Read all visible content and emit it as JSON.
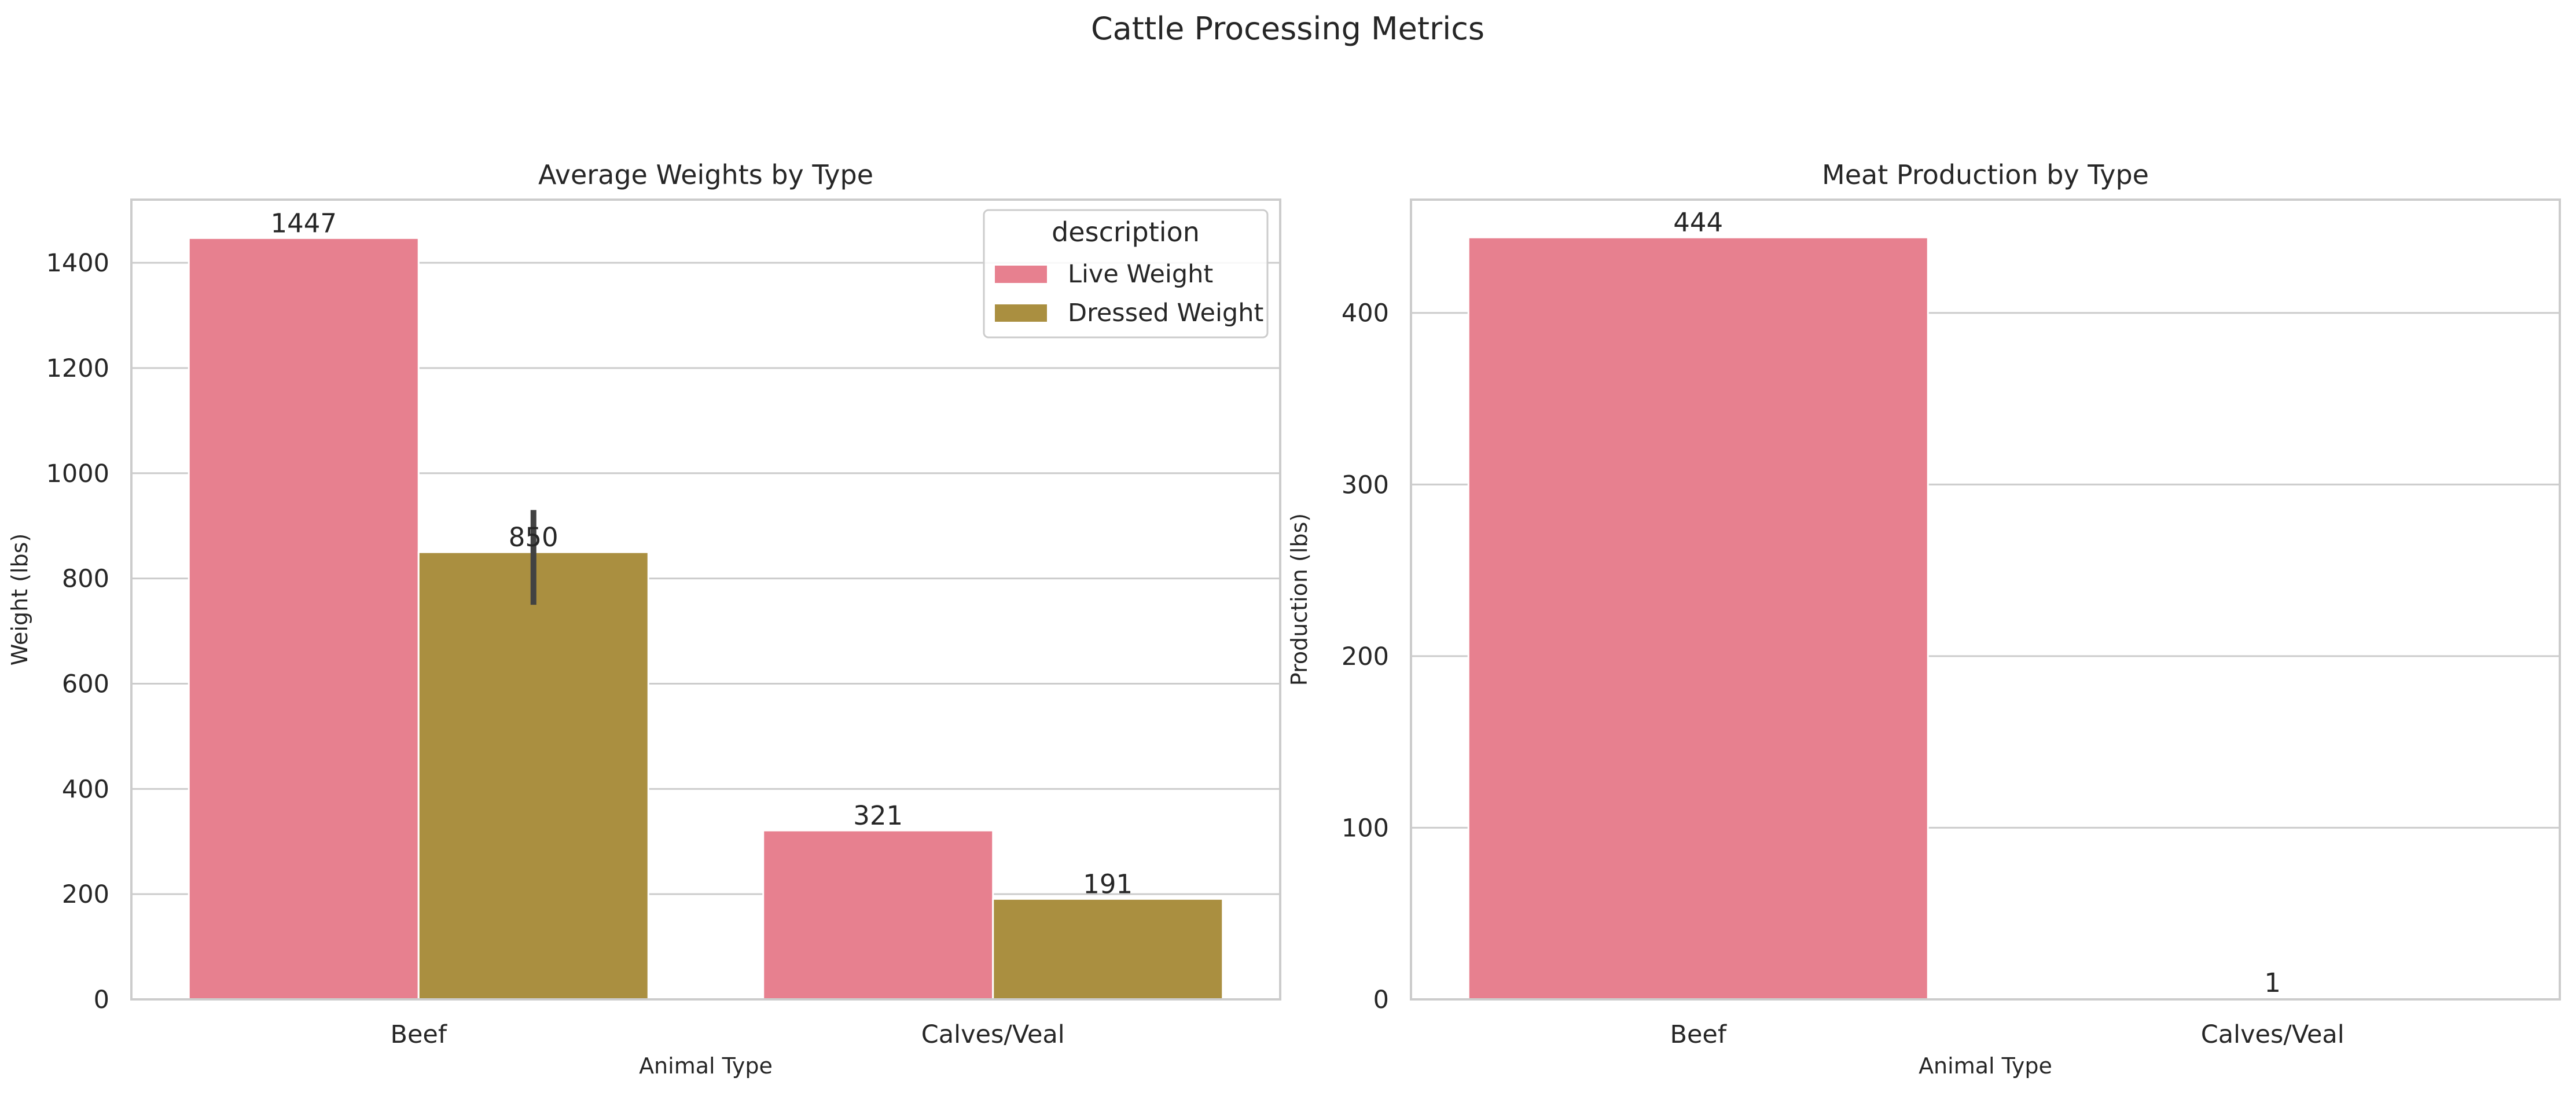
{
  "figure": {
    "suptitle": "Cattle Processing Metrics"
  },
  "chart_data": [
    {
      "type": "bar",
      "title": "Average Weights by Type",
      "xlabel": "Animal Type",
      "ylabel": "Weight (lbs)",
      "categories": [
        "Beef",
        "Calves/Veal"
      ],
      "ylim": [
        0,
        1520
      ],
      "yticks": [
        0,
        200,
        400,
        600,
        800,
        1000,
        1200,
        1400
      ],
      "grid": true,
      "legend": {
        "title": "description",
        "position": "top-right"
      },
      "series": [
        {
          "name": "Live Weight",
          "color": "#e7808f",
          "values": [
            1447,
            321
          ],
          "data_labels": [
            "1447",
            "321"
          ]
        },
        {
          "name": "Dressed Weight",
          "color": "#aa8f40",
          "values": [
            850,
            191
          ],
          "data_labels": [
            "850",
            "191"
          ],
          "error_bars": [
            [
              750,
              930
            ],
            null
          ]
        }
      ]
    },
    {
      "type": "bar",
      "title": "Meat Production by Type",
      "xlabel": "Animal Type",
      "ylabel": "Production (lbs)",
      "categories": [
        "Beef",
        "Calves/Veal"
      ],
      "ylim": [
        0,
        466
      ],
      "yticks": [
        0,
        100,
        200,
        300,
        400
      ],
      "grid": true,
      "series": [
        {
          "color": "#e7808f",
          "values": [
            444,
            1
          ],
          "data_labels": [
            "444",
            "1"
          ]
        }
      ]
    }
  ]
}
